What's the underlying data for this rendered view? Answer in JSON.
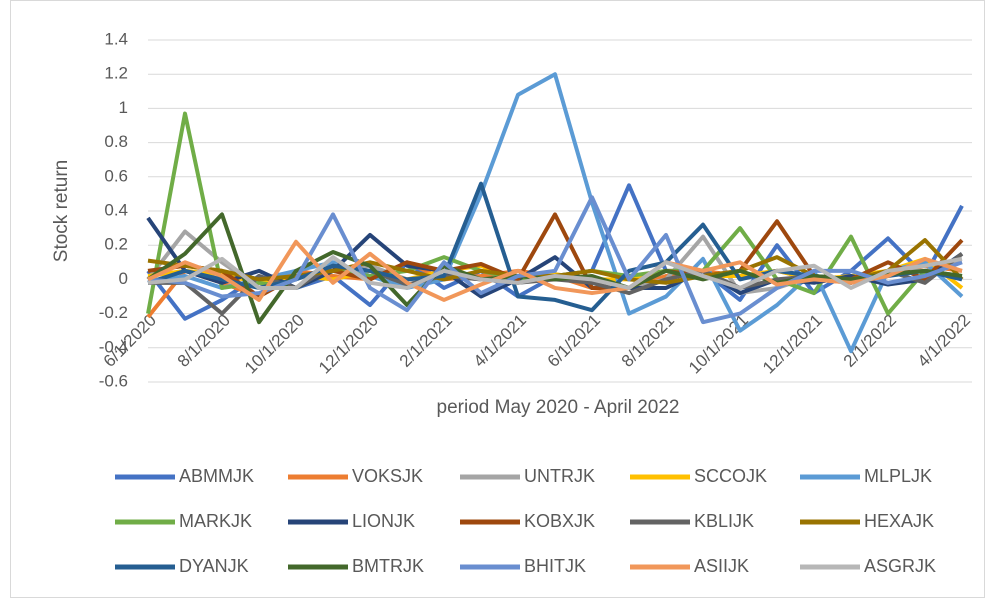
{
  "chart_data": {
    "type": "line",
    "y_label": "Stock return",
    "x_label": "period May 2020 - April 2022",
    "categories": [
      "6/1/2020",
      null,
      "8/1/2020",
      null,
      "10/1/2020",
      null,
      "12/1/2020",
      null,
      "2/1/2021",
      null,
      "4/1/2021",
      null,
      "6/1/2021",
      null,
      "8/1/2021",
      null,
      "10/1/2021",
      null,
      "12/1/2021",
      null,
      "2/1/2022",
      null,
      "4/1/2022"
    ],
    "ylim": [
      -0.6,
      1.4
    ],
    "yticks": [
      -0.6,
      -0.4,
      -0.2,
      0,
      0.2,
      0.4,
      0.6,
      0.8,
      1,
      1.2,
      1.4
    ],
    "grid": true,
    "legend": "bottom",
    "series": [
      {
        "name": "ABMMJK",
        "color": "#4472c4",
        "values": [
          0.05,
          -0.23,
          -0.12,
          0.02,
          -0.05,
          0.02,
          -0.15,
          0.1,
          -0.05,
          0.05,
          -0.1,
          0.02,
          0.05,
          0.55,
          0.05,
          0.05,
          -0.12,
          0.2,
          -0.08,
          0.05,
          0.24,
          0.02,
          0.43
        ]
      },
      {
        "name": "VOKSJK",
        "color": "#ed7d31",
        "values": [
          -0.22,
          0.05,
          -0.02,
          -0.1,
          0.05,
          0.02,
          0.0,
          0.1,
          0.0,
          0.02,
          0.05,
          0.02,
          -0.05,
          -0.05,
          0.02,
          0.05,
          0.02,
          0.05,
          0.0,
          -0.02,
          0.02,
          0.08,
          0.05
        ]
      },
      {
        "name": "UNTRJK",
        "color": "#a5a5a5",
        "values": [
          0.0,
          0.28,
          0.1,
          -0.05,
          0.02,
          0.05,
          0.08,
          0.0,
          0.02,
          0.0,
          -0.02,
          0.03,
          0.0,
          -0.05,
          0.0,
          0.25,
          -0.08,
          -0.05,
          0.02,
          -0.02,
          0.05,
          0.05,
          0.1
        ]
      },
      {
        "name": "SCCOJK",
        "color": "#ffc000",
        "values": [
          0.02,
          0.05,
          0.03,
          -0.02,
          0.02,
          0.0,
          0.05,
          0.0,
          0.05,
          0.08,
          -0.02,
          0.03,
          0.0,
          0.0,
          0.05,
          0.02,
          0.02,
          0.05,
          0.0,
          0.02,
          0.05,
          0.12,
          -0.05
        ]
      },
      {
        "name": "MLPLJK",
        "color": "#5b9bd5",
        "values": [
          -0.02,
          0.02,
          -0.05,
          0.0,
          0.05,
          0.1,
          0.02,
          -0.05,
          0.0,
          0.5,
          1.08,
          1.2,
          0.45,
          -0.2,
          -0.1,
          0.12,
          -0.3,
          -0.15,
          0.05,
          -0.42,
          0.05,
          0.1,
          -0.1
        ]
      },
      {
        "name": "MARKJK",
        "color": "#70ad47",
        "values": [
          -0.2,
          0.97,
          -0.05,
          -0.02,
          -0.05,
          0.05,
          0.02,
          0.05,
          0.13,
          0.05,
          0.0,
          0.02,
          0.05,
          0.02,
          0.05,
          0.05,
          0.3,
          0.0,
          -0.08,
          0.25,
          -0.2,
          0.05,
          0.02
        ]
      },
      {
        "name": "LIONJK",
        "color": "#264478",
        "values": [
          0.36,
          0.05,
          -0.02,
          0.05,
          -0.05,
          0.05,
          0.26,
          0.08,
          0.05,
          -0.1,
          0.0,
          0.13,
          -0.05,
          -0.05,
          -0.05,
          0.05,
          -0.08,
          0.0,
          -0.02,
          0.02,
          -0.03,
          0.0,
          0.15
        ]
      },
      {
        "name": "KOBXJK",
        "color": "#9e480e",
        "values": [
          0.05,
          0.08,
          0.05,
          -0.1,
          0.02,
          0.05,
          0.0,
          0.1,
          0.05,
          0.09,
          0.0,
          0.38,
          -0.05,
          -0.05,
          0.05,
          0.02,
          0.05,
          0.34,
          0.02,
          0.0,
          0.1,
          0.0,
          0.23
        ]
      },
      {
        "name": "KBLIJK",
        "color": "#636363",
        "values": [
          -0.02,
          -0.02,
          -0.2,
          0.02,
          -0.05,
          0.08,
          0.05,
          -0.03,
          0.02,
          0.0,
          -0.02,
          0.0,
          -0.02,
          -0.08,
          0.0,
          0.05,
          -0.05,
          0.0,
          0.02,
          -0.02,
          0.05,
          -0.02,
          0.15
        ]
      },
      {
        "name": "HEXAJK",
        "color": "#997300",
        "values": [
          0.11,
          0.08,
          0.05,
          0.0,
          0.02,
          0.05,
          0.1,
          0.05,
          0.0,
          0.05,
          0.02,
          0.02,
          0.05,
          0.0,
          -0.02,
          0.02,
          0.05,
          0.13,
          0.02,
          0.0,
          0.05,
          0.23,
          0.0
        ]
      },
      {
        "name": "DYANJK",
        "color": "#255e91",
        "values": [
          -0.02,
          0.05,
          0.0,
          -0.05,
          0.0,
          0.08,
          0.05,
          0.0,
          0.02,
          0.56,
          -0.1,
          -0.12,
          -0.18,
          0.05,
          0.1,
          0.32,
          0.0,
          0.05,
          0.02,
          0.0,
          0.02,
          0.05,
          0.0
        ]
      },
      {
        "name": "BMTRJK",
        "color": "#43682b",
        "values": [
          0.0,
          0.15,
          0.38,
          -0.25,
          0.05,
          0.16,
          0.08,
          -0.15,
          0.08,
          0.0,
          0.02,
          0.0,
          0.02,
          -0.05,
          0.05,
          0.0,
          0.05,
          -0.02,
          0.02,
          0.0,
          0.03,
          0.05,
          0.02
        ]
      },
      {
        "name": "BHITJK",
        "color": "#698ed0",
        "values": [
          0.0,
          -0.02,
          -0.1,
          -0.08,
          0.0,
          0.38,
          -0.05,
          -0.18,
          0.1,
          -0.08,
          0.02,
          0.05,
          0.48,
          0.0,
          0.26,
          -0.25,
          -0.2,
          -0.05,
          0.05,
          0.05,
          -0.02,
          0.02,
          0.1
        ]
      },
      {
        "name": "ASIIJK",
        "color": "#f1975a",
        "values": [
          0.0,
          0.1,
          0.02,
          -0.12,
          0.22,
          -0.02,
          0.15,
          -0.02,
          -0.12,
          -0.03,
          0.05,
          -0.05,
          -0.08,
          -0.05,
          0.1,
          0.05,
          0.1,
          -0.03,
          0.0,
          -0.02,
          0.02,
          0.12,
          0.05
        ]
      },
      {
        "name": "ASGRJK",
        "color": "#b7b7b7",
        "values": [
          -0.02,
          0.0,
          0.12,
          -0.05,
          -0.05,
          0.13,
          -0.02,
          -0.05,
          0.05,
          0.0,
          -0.02,
          0.02,
          0.0,
          -0.05,
          0.1,
          0.02,
          -0.05,
          0.05,
          0.08,
          -0.05,
          0.05,
          0.08,
          0.12
        ]
      }
    ]
  }
}
